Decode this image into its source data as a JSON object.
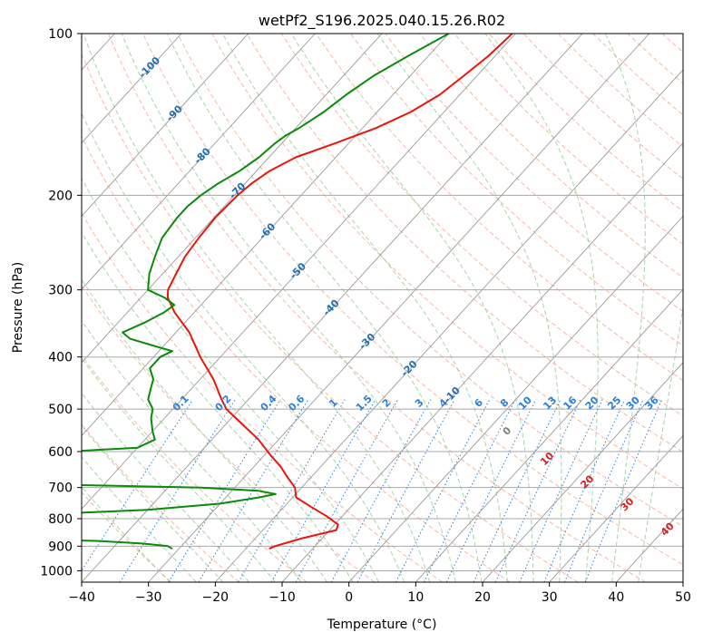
{
  "chart_data": {
    "type": "line",
    "title": "wetPf2_S196.2025.040.15.26.R02",
    "xlabel": "Temperature (°C)",
    "ylabel": "Pressure (hPa)",
    "xlim": [
      -40,
      50
    ],
    "ylim": [
      1050,
      100
    ],
    "yscale": "log",
    "skew": true,
    "grid": true,
    "x_ticks": [
      -40,
      -30,
      -20,
      -10,
      0,
      10,
      20,
      30,
      40,
      50
    ],
    "x_tick_labels": [
      "−40",
      "−30",
      "−20",
      "−10",
      "0",
      "10",
      "20",
      "30",
      "40",
      "50"
    ],
    "y_ticks": [
      100,
      200,
      300,
      400,
      500,
      600,
      700,
      800,
      900,
      1000
    ],
    "y_tick_labels": [
      "100",
      "200",
      "300",
      "400",
      "500",
      "600",
      "700",
      "800",
      "900",
      "1000"
    ],
    "colors": {
      "temperature": "#e8160c",
      "dewpoint": "#0b8a0b",
      "isotherm": "#9a9a9a",
      "isobar": "#a8a8a8",
      "dry_adiabat": "#f7a58a",
      "moist_adiabat": "#9fd09f",
      "mixing_ratio": "#2c7fd6",
      "isotherm_label": "#1f6fb0",
      "moist_label_neg": "#2c7fd6",
      "moist_label_pos": "#d62020"
    },
    "series": [
      {
        "key": "temperature",
        "points": [
          [
            -50.5,
            100
          ],
          [
            -51,
            110
          ],
          [
            -52,
            120
          ],
          [
            -53,
            130
          ],
          [
            -55,
            140
          ],
          [
            -58,
            150
          ],
          [
            -62,
            160
          ],
          [
            -66,
            170
          ],
          [
            -68,
            180
          ],
          [
            -69,
            190
          ],
          [
            -69.5,
            200
          ],
          [
            -69.8,
            220
          ],
          [
            -69.5,
            240
          ],
          [
            -69,
            260
          ],
          [
            -68,
            280
          ],
          [
            -67,
            300
          ],
          [
            -66,
            310
          ],
          [
            -63,
            330
          ],
          [
            -58,
            360
          ],
          [
            -53,
            400
          ],
          [
            -48,
            440
          ],
          [
            -44,
            480
          ],
          [
            -42,
            500
          ],
          [
            -38,
            530
          ],
          [
            -33,
            570
          ],
          [
            -29,
            610
          ],
          [
            -26,
            640
          ],
          [
            -23.5,
            670
          ],
          [
            -21,
            700
          ],
          [
            -19.5,
            730
          ],
          [
            -16,
            760
          ],
          [
            -12.5,
            790
          ],
          [
            -9.5,
            820
          ],
          [
            -9,
            840
          ],
          [
            -11,
            855
          ],
          [
            -13,
            870
          ],
          [
            -14.5,
            885
          ],
          [
            -16,
            900
          ],
          [
            -16.5,
            910
          ]
        ]
      },
      {
        "key": "dewpoint",
        "points": [
          [
            -60,
            100
          ],
          [
            -63,
            110
          ],
          [
            -65.5,
            120
          ],
          [
            -67,
            130
          ],
          [
            -68,
            140
          ],
          [
            -69.5,
            150
          ],
          [
            -70.5,
            155
          ],
          [
            -71,
            160
          ],
          [
            -71.5,
            170
          ],
          [
            -72.5,
            180
          ],
          [
            -74,
            190
          ],
          [
            -75,
            200
          ],
          [
            -75.5,
            210
          ],
          [
            -75.5,
            220
          ],
          [
            -75,
            240
          ],
          [
            -73.5,
            260
          ],
          [
            -72,
            280
          ],
          [
            -70,
            300
          ],
          [
            -66.5,
            310
          ],
          [
            -64,
            320
          ],
          [
            -64.5,
            330
          ],
          [
            -66,
            345
          ],
          [
            -68,
            360
          ],
          [
            -66,
            370
          ],
          [
            -62,
            380
          ],
          [
            -58,
            390
          ],
          [
            -59,
            400
          ],
          [
            -59,
            420
          ],
          [
            -57,
            440
          ],
          [
            -56,
            460
          ],
          [
            -55,
            480
          ],
          [
            -53,
            500
          ],
          [
            -52,
            520
          ],
          [
            -50,
            550
          ],
          [
            -48.5,
            570
          ],
          [
            -50,
            590
          ],
          [
            -60,
            600
          ],
          [
            -70,
            606
          ],
          [
            -76,
            612
          ],
          [
            -73,
            620
          ],
          [
            -70,
            630
          ],
          [
            -68,
            640
          ],
          [
            -67,
            650
          ],
          [
            -70,
            660
          ],
          [
            -76,
            670
          ],
          [
            -82,
            680
          ],
          [
            -60,
            690
          ],
          [
            -35,
            700
          ],
          [
            -26,
            710
          ],
          [
            -23,
            720
          ],
          [
            -25,
            730
          ],
          [
            -30,
            750
          ],
          [
            -40,
            770
          ],
          [
            -60,
            790
          ],
          [
            -110,
            810
          ],
          [
            -150,
            820
          ]
        ]
      },
      {
        "key": "dewpoint",
        "points": [
          [
            -150,
            850
          ],
          [
            -110,
            860
          ],
          [
            -60,
            870
          ],
          [
            -43,
            880
          ],
          [
            -36,
            890
          ],
          [
            -32,
            900
          ],
          [
            -31,
            910
          ]
        ]
      }
    ],
    "isotherm_labels": [
      -100,
      -90,
      -80,
      -70,
      -60,
      -50,
      -40,
      -30,
      -20,
      -10
    ],
    "isotherm_label_values": [
      "-100",
      "-90",
      "-80",
      "-70",
      "-60",
      "-50",
      "-40",
      "-30",
      "-20",
      "-10"
    ],
    "mixing_ratio_labels": [
      "0.1",
      "0.2",
      "0.4",
      "0.6",
      "1",
      "1.5",
      "2",
      "3",
      "4",
      "6",
      "8",
      "10",
      "13",
      "16",
      "20",
      "25",
      "30",
      "36"
    ],
    "mixing_ratio_values": [
      0.1,
      0.2,
      0.4,
      0.6,
      1,
      1.5,
      2,
      3,
      4,
      6,
      8,
      10,
      13,
      16,
      20,
      25,
      30,
      36
    ],
    "moist_adiabat_labels": [
      "0",
      "10",
      "20",
      "30",
      "40"
    ],
    "moist_adiabat_values": [
      0,
      10,
      20,
      30,
      40
    ]
  }
}
